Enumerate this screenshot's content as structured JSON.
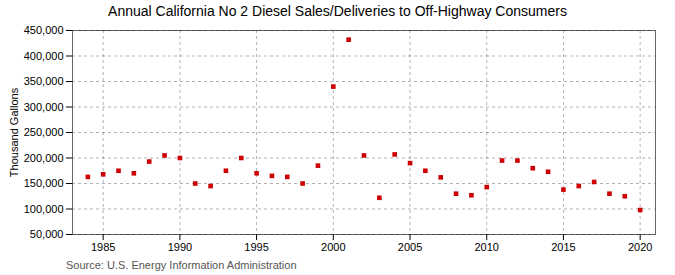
{
  "chart_data": {
    "type": "scatter",
    "title": "Annual California No 2 Diesel Sales/Deliveries to Off-Highway Consumers",
    "ylabel": "Thousand Gallons",
    "source": "Source: U.S. Energy Information Administration",
    "x": [
      1984,
      1985,
      1986,
      1987,
      1988,
      1989,
      1990,
      1991,
      1992,
      1993,
      1994,
      1995,
      1996,
      1997,
      1998,
      1999,
      2000,
      2001,
      2002,
      2003,
      2004,
      2005,
      2006,
      2007,
      2008,
      2009,
      2010,
      2011,
      2012,
      2013,
      2014,
      2015,
      2016,
      2017,
      2018,
      2019,
      2020
    ],
    "values": [
      163000,
      168000,
      175000,
      170000,
      193000,
      205000,
      200000,
      150000,
      145000,
      175000,
      200000,
      170000,
      165000,
      163000,
      150000,
      185000,
      340000,
      432000,
      205000,
      122000,
      207000,
      190000,
      175000,
      162000,
      130000,
      127000,
      143000,
      195000,
      195000,
      180000,
      173000,
      138000,
      145000,
      153000,
      130000,
      125000,
      98000
    ],
    "color": "#cc0000",
    "marker": "square",
    "xlim": [
      1983,
      2021
    ],
    "xticks": [
      1985,
      1990,
      1995,
      2000,
      2005,
      2010,
      2015,
      2020
    ],
    "ylim": [
      50000,
      450000
    ],
    "yticks": [
      {
        "value": 50000,
        "label": "50,000"
      },
      {
        "value": 100000,
        "label": "100,000"
      },
      {
        "value": 150000,
        "label": "150,000"
      },
      {
        "value": 200000,
        "label": "200,000"
      },
      {
        "value": 250000,
        "label": "250,000"
      },
      {
        "value": 300000,
        "label": "300,000"
      },
      {
        "value": 350000,
        "label": "350,000"
      },
      {
        "value": 400000,
        "label": "400,000"
      },
      {
        "value": 450000,
        "label": "450,000"
      }
    ],
    "grid": true
  }
}
